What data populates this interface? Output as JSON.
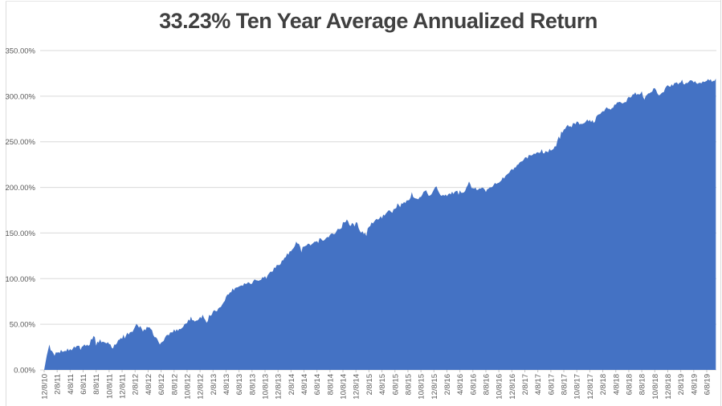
{
  "window": {
    "background": "#FFFFFF",
    "border_color": "#DCDCDC"
  },
  "chart_data": {
    "type": "area",
    "title": "33.23% Ten Year Average Annualized Return",
    "xlabel": "",
    "ylabel": "",
    "ylim": [
      0,
      350
    ],
    "grid": true,
    "legend": false,
    "y_tick_values": [
      0,
      50,
      100,
      150,
      200,
      250,
      300,
      350
    ],
    "y_tick_labels": [
      "0.00%",
      "50.00%",
      "100.00%",
      "150.00%",
      "200.00%",
      "250.00%",
      "300.00%",
      "350.00%"
    ],
    "x_tick_labels": [
      "12/8/10",
      "2/8/11",
      "4/8/11",
      "6/8/11",
      "8/8/11",
      "10/8/11",
      "12/8/11",
      "2/8/12",
      "4/8/12",
      "6/8/12",
      "8/8/12",
      "10/8/12",
      "12/8/12",
      "2/8/13",
      "4/8/13",
      "6/8/13",
      "8/8/13",
      "10/8/13",
      "12/8/13",
      "2/8/14",
      "4/8/14",
      "6/8/14",
      "8/8/14",
      "10/8/14",
      "12/8/14",
      "2/8/15",
      "4/8/15",
      "6/8/15",
      "8/8/15",
      "10/8/15",
      "12/8/15",
      "2/8/16",
      "4/8/16",
      "6/8/16",
      "8/8/16",
      "10/8/16",
      "12/8/16",
      "2/8/17",
      "4/8/17",
      "6/8/17",
      "8/8/17",
      "10/8/17",
      "12/8/17",
      "2/8/18",
      "4/8/18",
      "6/8/18",
      "8/8/18",
      "10/8/18",
      "12/8/18",
      "2/8/19",
      "4/8/19",
      "6/8/19"
    ],
    "series": [
      {
        "fill_color": "#4472C4",
        "anchors_x_in_tick_units_and_pct": [
          [
            0,
            0
          ],
          [
            0.15,
            12
          ],
          [
            0.35,
            25
          ],
          [
            0.55,
            20
          ],
          [
            0.7,
            17
          ],
          [
            1,
            18
          ],
          [
            1.5,
            22
          ],
          [
            2,
            22
          ],
          [
            2.5,
            26
          ],
          [
            3,
            27
          ],
          [
            3.5,
            29
          ],
          [
            3.8,
            38
          ],
          [
            4,
            31
          ],
          [
            4.5,
            30
          ],
          [
            5,
            30
          ],
          [
            5.3,
            24
          ],
          [
            5.7,
            33
          ],
          [
            6,
            34
          ],
          [
            6.5,
            38
          ],
          [
            7,
            46
          ],
          [
            7.3,
            48
          ],
          [
            7.6,
            43
          ],
          [
            8,
            47
          ],
          [
            8.4,
            40
          ],
          [
            8.8,
            30
          ],
          [
            9,
            29
          ],
          [
            9.5,
            38
          ],
          [
            10,
            43
          ],
          [
            10.5,
            45
          ],
          [
            11,
            52
          ],
          [
            11.3,
            57
          ],
          [
            11.6,
            53
          ],
          [
            12,
            57
          ],
          [
            12.25,
            60
          ],
          [
            12.5,
            52
          ],
          [
            12.8,
            58
          ],
          [
            13,
            63
          ],
          [
            13.5,
            67
          ],
          [
            14,
            80
          ],
          [
            14.5,
            88
          ],
          [
            15,
            92
          ],
          [
            15.5,
            95
          ],
          [
            16,
            96
          ],
          [
            16.5,
            99
          ],
          [
            17,
            102
          ],
          [
            17.5,
            108
          ],
          [
            18,
            115
          ],
          [
            18.5,
            122
          ],
          [
            19,
            130
          ],
          [
            19.3,
            135
          ],
          [
            19.6,
            138
          ],
          [
            19.8,
            133
          ],
          [
            20,
            135
          ],
          [
            20.5,
            137
          ],
          [
            21,
            140
          ],
          [
            21.2,
            146
          ],
          [
            21.5,
            143
          ],
          [
            22,
            147
          ],
          [
            22.4,
            151
          ],
          [
            23,
            158
          ],
          [
            23.3,
            165
          ],
          [
            23.6,
            158
          ],
          [
            24,
            161
          ],
          [
            24.3,
            152
          ],
          [
            24.7,
            149
          ],
          [
            25,
            156
          ],
          [
            25.4,
            164
          ],
          [
            25.7,
            166
          ],
          [
            26,
            167
          ],
          [
            26.5,
            174
          ],
          [
            27,
            176
          ],
          [
            27.5,
            181
          ],
          [
            28,
            185
          ],
          [
            28.3,
            193
          ],
          [
            28.6,
            187
          ],
          [
            29,
            189
          ],
          [
            29.3,
            197
          ],
          [
            29.6,
            191
          ],
          [
            30,
            197
          ],
          [
            30.2,
            201
          ],
          [
            30.5,
            192
          ],
          [
            31,
            192
          ],
          [
            31.5,
            194
          ],
          [
            32,
            195
          ],
          [
            32.5,
            197
          ],
          [
            32.7,
            206
          ],
          [
            33,
            198
          ],
          [
            33.5,
            198
          ],
          [
            34,
            199
          ],
          [
            34.5,
            202
          ],
          [
            35,
            206
          ],
          [
            35.5,
            212
          ],
          [
            36,
            219
          ],
          [
            36.4,
            223
          ],
          [
            37,
            231
          ],
          [
            37.5,
            236
          ],
          [
            38,
            238
          ],
          [
            38.5,
            239
          ],
          [
            39,
            241
          ],
          [
            39.4,
            246
          ],
          [
            39.7,
            258
          ],
          [
            40,
            264
          ],
          [
            40.4,
            268
          ],
          [
            41,
            270
          ],
          [
            41.5,
            271
          ],
          [
            42,
            274
          ],
          [
            42.3,
            272
          ],
          [
            42.6,
            278
          ],
          [
            43,
            284
          ],
          [
            43.3,
            287
          ],
          [
            43.6,
            285
          ],
          [
            44,
            291
          ],
          [
            44.3,
            294
          ],
          [
            44.6,
            291
          ],
          [
            45,
            299
          ],
          [
            45.3,
            302
          ],
          [
            45.6,
            300
          ],
          [
            46,
            305
          ],
          [
            46.15,
            296
          ],
          [
            46.5,
            303
          ],
          [
            47,
            308
          ],
          [
            47.35,
            299
          ],
          [
            47.7,
            306
          ],
          [
            48,
            311
          ],
          [
            48.5,
            313
          ],
          [
            49,
            315
          ],
          [
            49.3,
            313
          ],
          [
            49.6,
            316
          ],
          [
            50,
            316
          ],
          [
            50.4,
            314
          ],
          [
            50.8,
            317
          ],
          [
            51,
            318
          ],
          [
            51.4,
            317
          ],
          [
            51.7,
            319
          ]
        ],
        "end_value_pct": 319
      }
    ],
    "noise_amplitude_pct": 1.8
  },
  "styles": {
    "title_color": "#404040",
    "axis_label_color": "#595959",
    "grid_color": "#D9D9D9",
    "tick_mark_color": "#BFBFBF",
    "area_color": "#4472C4"
  }
}
